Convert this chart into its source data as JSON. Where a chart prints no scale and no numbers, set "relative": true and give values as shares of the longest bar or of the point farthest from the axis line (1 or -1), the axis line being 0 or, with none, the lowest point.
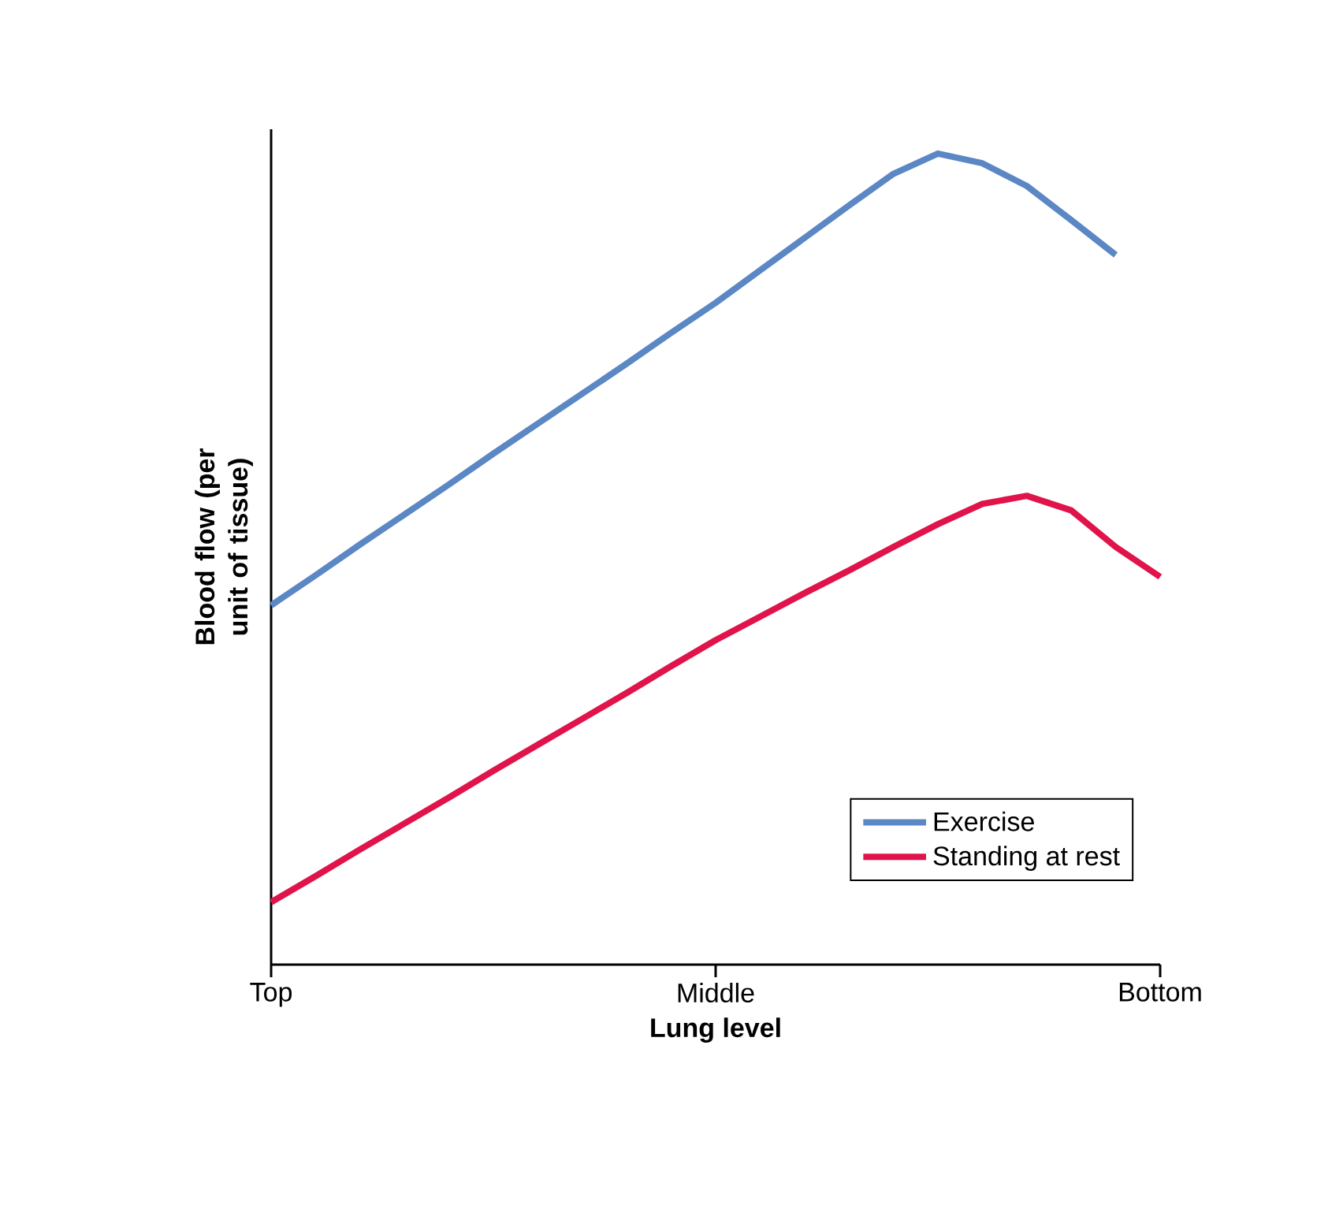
{
  "chart_data": {
    "type": "line",
    "relative": true,
    "xlabel": "Lung level",
    "ylabel": "Blood flow (per unit of tissue)",
    "categories": [
      "Top",
      null,
      null,
      null,
      null,
      null,
      null,
      null,
      null,
      null,
      "Middle",
      null,
      null,
      null,
      null,
      null,
      null,
      null,
      null,
      null,
      "Bottom"
    ],
    "legend": "bottom right",
    "marker": "none",
    "line_style": "solid",
    "series": [
      {
        "name": "Exercise",
        "color": "#5b87c5",
        "values": [
          0.443,
          0.48,
          0.518,
          0.555,
          0.592,
          0.63,
          0.667,
          0.704,
          0.741,
          0.779,
          0.816,
          0.856,
          0.896,
          0.936,
          0.975,
          1,
          0.988,
          0.96,
          0.918,
          0.875,
          null
        ]
      },
      {
        "name": "Standing at rest",
        "color": "#e0134a",
        "values": [
          0.077,
          0.109,
          0.142,
          0.174,
          0.206,
          0.239,
          0.271,
          0.303,
          0.335,
          0.368,
          0.4,
          0.429,
          0.458,
          0.486,
          0.515,
          0.543,
          0.568,
          0.578,
          0.56,
          0.515,
          0.478
        ]
      }
    ]
  }
}
